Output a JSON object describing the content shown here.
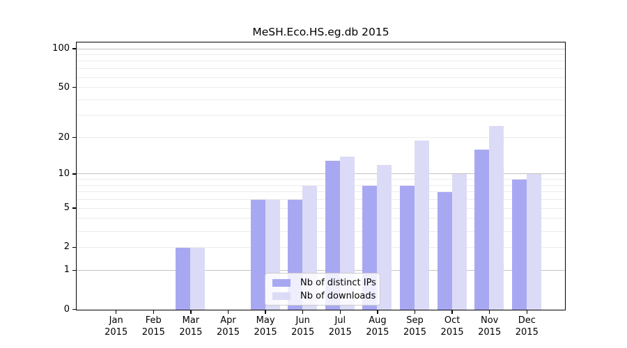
{
  "chart_data": {
    "type": "bar",
    "title": "MeSH.Eco.HS.eg.db 2015",
    "year": "2015",
    "categories": [
      "Jan",
      "Feb",
      "Mar",
      "Apr",
      "May",
      "Jun",
      "Jul",
      "Aug",
      "Sep",
      "Oct",
      "Nov",
      "Dec"
    ],
    "series": [
      {
        "name": "Nb of distinct IPs",
        "color": "#a8a8f2",
        "values": [
          0,
          0,
          2,
          0,
          6,
          6,
          13,
          8,
          8,
          7,
          16,
          9
        ]
      },
      {
        "name": "Nb of downloads",
        "color": "#dbdbf7",
        "values": [
          0,
          0,
          2,
          0,
          6,
          8,
          14,
          12,
          19,
          10,
          25,
          10
        ]
      }
    ],
    "y_scale": "log1p",
    "y_ticks": [
      0,
      1,
      2,
      5,
      10,
      20,
      50,
      100
    ],
    "y_gridlines_minor": [
      2,
      3,
      4,
      5,
      6,
      7,
      8,
      9,
      20,
      30,
      40,
      50,
      60,
      70,
      80,
      90
    ],
    "y_gridlines_major": [
      1,
      10,
      100
    ],
    "xlabel": "",
    "ylabel": "",
    "legend_position": "lower center",
    "grid": "on"
  },
  "colors": {
    "grid_minor": "#ececec",
    "grid_major": "#c2c2c2",
    "axis": "#000000",
    "legend_border": "#cccccc",
    "background": "#ffffff"
  }
}
